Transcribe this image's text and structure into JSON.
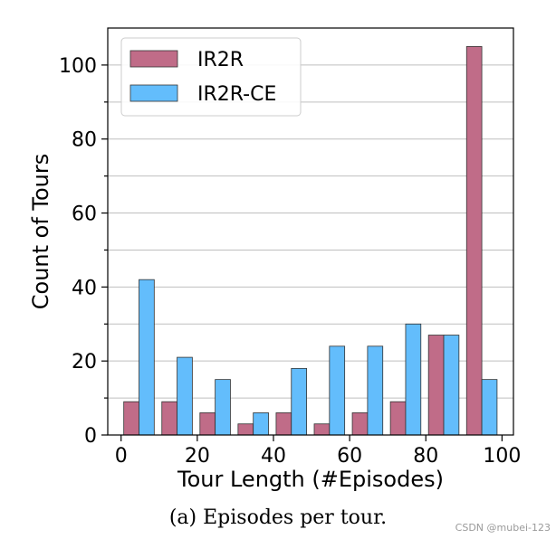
{
  "chart_data": {
    "type": "bar",
    "categories": [
      "0-10",
      "10-20",
      "20-30",
      "30-40",
      "40-50",
      "50-60",
      "60-70",
      "70-80",
      "80-90",
      "90-100"
    ],
    "series": [
      {
        "name": "IR2R",
        "color": "#c06c88",
        "values": [
          9,
          9,
          6,
          3,
          6,
          3,
          6,
          9,
          27,
          105
        ]
      },
      {
        "name": "IR2R-CE",
        "color": "#63bdfc",
        "values": [
          42,
          21,
          15,
          6,
          18,
          24,
          24,
          30,
          27,
          15
        ]
      }
    ],
    "xlabel": "Tour Length (#Episodes)",
    "ylabel": "Count of Tours",
    "xlim": [
      -3.5,
      103
    ],
    "ylim": [
      0,
      110
    ],
    "xticks": [
      "0",
      "20",
      "40",
      "60",
      "80",
      "100"
    ],
    "yticks": [
      "0",
      "20",
      "40",
      "60",
      "80",
      "100"
    ],
    "grid": "horizontal",
    "legend_position": "top-left"
  },
  "caption": "(a) Episodes per tour.",
  "watermark": "CSDN @mubei-123"
}
